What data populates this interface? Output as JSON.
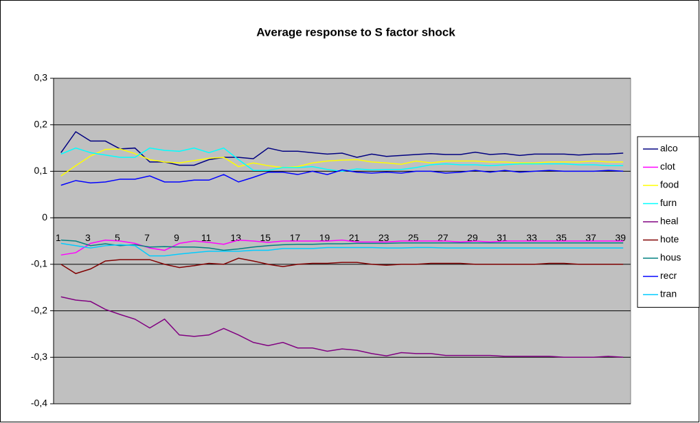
{
  "chart_data": {
    "type": "line",
    "title": "Average response to S factor shock",
    "categories": [
      1,
      null,
      3,
      null,
      5,
      null,
      7,
      null,
      9,
      null,
      11,
      null,
      13,
      null,
      15,
      null,
      17,
      null,
      19,
      null,
      21,
      null,
      23,
      null,
      25,
      null,
      27,
      null,
      29,
      null,
      31,
      null,
      33,
      null,
      35,
      null,
      37,
      null,
      39
    ],
    "ylim": [
      -0.4,
      0.3
    ],
    "yticks": [
      {
        "value": -0.4,
        "label": "-0,4"
      },
      {
        "value": -0.3,
        "label": "-0,3"
      },
      {
        "value": -0.2,
        "label": "-0,2"
      },
      {
        "value": -0.1,
        "label": "-0,1"
      },
      0,
      {
        "value": 0.1,
        "label": "0,1"
      },
      {
        "value": 0.2,
        "label": "0,2"
      },
      {
        "value": 0.3,
        "label": "0,3"
      }
    ],
    "grid": true,
    "legend": "right",
    "plot_background": "#c0c0c0",
    "series": [
      {
        "name": "alco",
        "color": "#000080",
        "values": [
          0.14,
          0.185,
          0.165,
          0.165,
          0.148,
          0.15,
          0.12,
          0.12,
          0.113,
          0.113,
          0.125,
          0.13,
          0.13,
          0.127,
          0.15,
          0.143,
          0.143,
          0.14,
          0.137,
          0.139,
          0.13,
          0.137,
          0.132,
          0.134,
          0.136,
          0.138,
          0.136,
          0.136,
          0.141,
          0.136,
          0.138,
          0.134,
          0.137,
          0.137,
          0.137,
          0.135,
          0.137,
          0.137,
          0.139
        ]
      },
      {
        "name": "clot",
        "color": "#ff00ff",
        "values": [
          -0.08,
          -0.075,
          -0.055,
          -0.048,
          -0.05,
          -0.055,
          -0.065,
          -0.07,
          -0.055,
          -0.05,
          -0.053,
          -0.057,
          -0.048,
          -0.05,
          -0.053,
          -0.05,
          -0.05,
          -0.05,
          -0.05,
          -0.048,
          -0.052,
          -0.052,
          -0.052,
          -0.05,
          -0.05,
          -0.05,
          -0.05,
          -0.052,
          -0.05,
          -0.052,
          -0.05,
          -0.05,
          -0.05,
          -0.05,
          -0.05,
          -0.05,
          -0.05,
          -0.05,
          -0.05
        ]
      },
      {
        "name": "food",
        "color": "#ffff00",
        "values": [
          0.09,
          0.112,
          0.133,
          0.147,
          0.148,
          0.138,
          0.125,
          0.12,
          0.118,
          0.123,
          0.128,
          0.13,
          0.11,
          0.118,
          0.112,
          0.108,
          0.11,
          0.118,
          0.122,
          0.124,
          0.125,
          0.12,
          0.118,
          0.115,
          0.122,
          0.118,
          0.122,
          0.122,
          0.122,
          0.12,
          0.12,
          0.118,
          0.118,
          0.12,
          0.12,
          0.12,
          0.122,
          0.12,
          0.12
        ]
      },
      {
        "name": "furn",
        "color": "#00ffff",
        "values": [
          0.137,
          0.15,
          0.14,
          0.135,
          0.13,
          0.13,
          0.15,
          0.145,
          0.143,
          0.15,
          0.14,
          0.15,
          0.125,
          0.102,
          0.102,
          0.108,
          0.108,
          0.11,
          0.104,
          0.1,
          0.105,
          0.103,
          0.104,
          0.104,
          0.108,
          0.114,
          0.116,
          0.114,
          0.114,
          0.112,
          0.114,
          0.116,
          0.116,
          0.116,
          0.116,
          0.114,
          0.114,
          0.112,
          0.112
        ]
      },
      {
        "name": "heal",
        "color": "#800080",
        "values": [
          -0.17,
          -0.177,
          -0.18,
          -0.197,
          -0.208,
          -0.218,
          -0.237,
          -0.218,
          -0.252,
          -0.255,
          -0.252,
          -0.238,
          -0.252,
          -0.268,
          -0.275,
          -0.268,
          -0.28,
          -0.28,
          -0.287,
          -0.282,
          -0.285,
          -0.292,
          -0.297,
          -0.29,
          -0.292,
          -0.292,
          -0.296,
          -0.296,
          -0.296,
          -0.296,
          -0.298,
          -0.298,
          -0.298,
          -0.298,
          -0.3,
          -0.3,
          -0.3,
          -0.298,
          -0.3
        ]
      },
      {
        "name": "hote",
        "color": "#800000",
        "values": [
          -0.1,
          -0.12,
          -0.11,
          -0.093,
          -0.09,
          -0.09,
          -0.09,
          -0.1,
          -0.107,
          -0.103,
          -0.098,
          -0.1,
          -0.087,
          -0.093,
          -0.1,
          -0.105,
          -0.1,
          -0.098,
          -0.098,
          -0.096,
          -0.096,
          -0.1,
          -0.102,
          -0.1,
          -0.1,
          -0.098,
          -0.098,
          -0.098,
          -0.1,
          -0.1,
          -0.1,
          -0.1,
          -0.1,
          -0.098,
          -0.098,
          -0.1,
          -0.1,
          -0.1,
          -0.1
        ]
      },
      {
        "name": "hous",
        "color": "#008080",
        "values": [
          -0.048,
          -0.05,
          -0.06,
          -0.056,
          -0.06,
          -0.058,
          -0.063,
          -0.062,
          -0.063,
          -0.063,
          -0.065,
          -0.07,
          -0.067,
          -0.063,
          -0.06,
          -0.058,
          -0.057,
          -0.057,
          -0.056,
          -0.056,
          -0.055,
          -0.055,
          -0.055,
          -0.054,
          -0.054,
          -0.054,
          -0.054,
          -0.054,
          -0.054,
          -0.054,
          -0.054,
          -0.054,
          -0.054,
          -0.054,
          -0.054,
          -0.054,
          -0.054,
          -0.054,
          -0.054
        ]
      },
      {
        "name": "recr",
        "color": "#0000ff",
        "values": [
          0.07,
          0.08,
          0.075,
          0.077,
          0.083,
          0.083,
          0.09,
          0.077,
          0.077,
          0.081,
          0.081,
          0.093,
          0.077,
          0.087,
          0.098,
          0.098,
          0.093,
          0.1,
          0.093,
          0.103,
          0.098,
          0.096,
          0.098,
          0.096,
          0.1,
          0.1,
          0.096,
          0.098,
          0.102,
          0.098,
          0.102,
          0.098,
          0.1,
          0.102,
          0.1,
          0.1,
          0.1,
          0.102,
          0.1
        ]
      },
      {
        "name": "tran",
        "color": "#00ccff",
        "values": [
          -0.055,
          -0.06,
          -0.065,
          -0.06,
          -0.058,
          -0.06,
          -0.082,
          -0.082,
          -0.078,
          -0.075,
          -0.072,
          -0.072,
          -0.072,
          -0.07,
          -0.07,
          -0.066,
          -0.066,
          -0.066,
          -0.064,
          -0.064,
          -0.064,
          -0.064,
          -0.065,
          -0.065,
          -0.064,
          -0.064,
          -0.065,
          -0.065,
          -0.065,
          -0.065,
          -0.065,
          -0.065,
          -0.065,
          -0.065,
          -0.065,
          -0.065,
          -0.065,
          -0.065,
          -0.065
        ]
      }
    ]
  }
}
